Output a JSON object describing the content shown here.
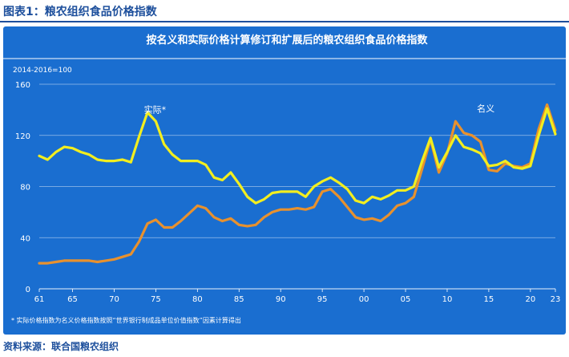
{
  "figure_title": "图表1：粮农组织食品价格指数",
  "source_text": "资料来源：联合国粮农组织",
  "chart_data": {
    "type": "line",
    "title": "按名义和实际价格计算修订和扩展后的粮农组织食品价格指数",
    "ylabel": "2014-2016=100",
    "footnote": "* 实际价格指数为名义价格指数按照“世界银行制成品单位价值指数”因素计算得出",
    "ylim": [
      0,
      160
    ],
    "yticks": [
      0,
      40,
      80,
      120,
      160
    ],
    "xlim": [
      1961,
      2023
    ],
    "xticks": [
      {
        "year": 1961,
        "label": "61"
      },
      {
        "year": 1965,
        "label": "65"
      },
      {
        "year": 1970,
        "label": "70"
      },
      {
        "year": 1975,
        "label": "75"
      },
      {
        "year": 1980,
        "label": "80"
      },
      {
        "year": 1985,
        "label": "85"
      },
      {
        "year": 1990,
        "label": "90"
      },
      {
        "year": 1995,
        "label": "95"
      },
      {
        "year": 2000,
        "label": "00"
      },
      {
        "year": 2005,
        "label": "05"
      },
      {
        "year": 2010,
        "label": "10"
      },
      {
        "year": 2015,
        "label": "15"
      },
      {
        "year": 2020,
        "label": "20"
      },
      {
        "year": 2023,
        "label": "23"
      }
    ],
    "x": [
      1961,
      1962,
      1963,
      1964,
      1965,
      1966,
      1967,
      1968,
      1969,
      1970,
      1971,
      1972,
      1973,
      1974,
      1975,
      1976,
      1977,
      1978,
      1979,
      1980,
      1981,
      1982,
      1983,
      1984,
      1985,
      1986,
      1987,
      1988,
      1989,
      1990,
      1991,
      1992,
      1993,
      1994,
      1995,
      1996,
      1997,
      1998,
      1999,
      2000,
      2001,
      2002,
      2003,
      2004,
      2005,
      2006,
      2007,
      2008,
      2009,
      2010,
      2011,
      2012,
      2013,
      2014,
      2015,
      2016,
      2017,
      2018,
      2019,
      2020,
      2021,
      2022,
      2023
    ],
    "series": [
      {
        "name": "名义",
        "color": "#e8912e",
        "values": [
          20,
          20,
          21,
          22,
          22,
          22,
          22,
          21,
          22,
          23,
          25,
          27,
          37,
          51,
          54,
          48,
          48,
          53,
          59,
          65,
          63,
          56,
          53,
          55,
          50,
          49,
          50,
          56,
          60,
          62,
          62,
          63,
          62,
          64,
          76,
          78,
          72,
          64,
          56,
          54,
          55,
          53,
          58,
          65,
          67,
          72,
          94,
          117,
          91,
          106,
          131,
          122,
          120,
          115,
          93,
          92,
          98,
          96,
          95,
          98,
          125,
          144,
          124
        ]
      },
      {
        "name": "实际*",
        "color": "#f2ee1f",
        "values": [
          104,
          101,
          107,
          111,
          110,
          107,
          105,
          101,
          100,
          100,
          101,
          99,
          119,
          138,
          131,
          113,
          105,
          100,
          100,
          100,
          97,
          87,
          85,
          91,
          82,
          72,
          67,
          70,
          75,
          76,
          76,
          76,
          72,
          80,
          84,
          87,
          83,
          78,
          69,
          67,
          72,
          70,
          73,
          77,
          77,
          80,
          100,
          118,
          95,
          107,
          120,
          111,
          109,
          106,
          96,
          97,
          100,
          95,
          94,
          96,
          120,
          141,
          121
        ]
      }
    ],
    "annotations": [
      {
        "text": "实际*",
        "series": "实际*",
        "year": 1973
      },
      {
        "text": "名义",
        "series": "名义",
        "year": 2013
      }
    ]
  }
}
